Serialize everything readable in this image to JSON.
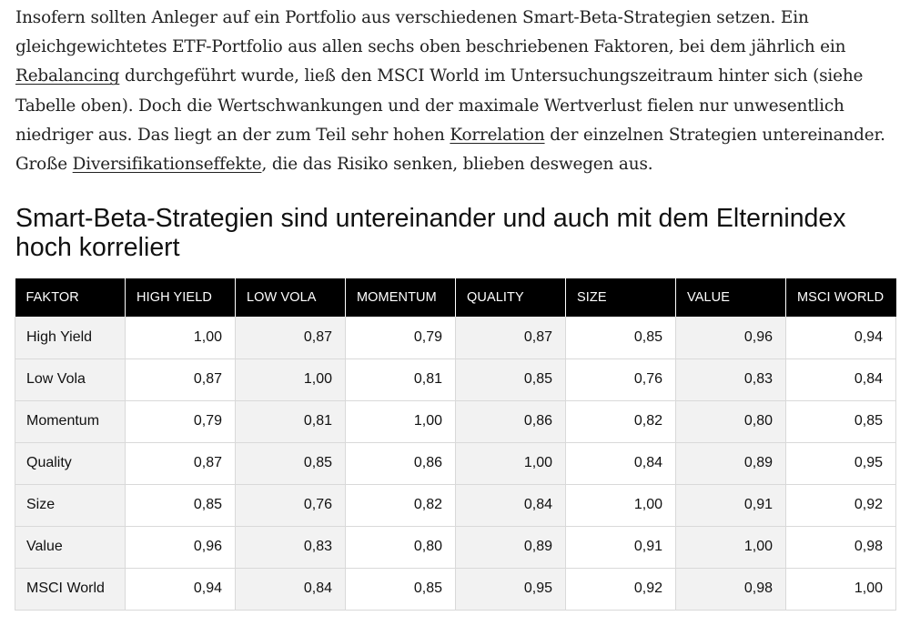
{
  "article": {
    "text_1": "Insofern sollten Anleger auf ein Portfolio aus verschiedenen Smart-Beta-Strategien setzen. Ein gleichgewichtetes ETF-Portfolio aus allen sechs oben beschriebenen Faktoren, bei dem jährlich ein ",
    "link_rebalancing": "Rebalancing",
    "text_2": " durchgeführt wurde, ließ den MSCI World im Untersuchungszeitraum hinter sich (siehe Tabelle oben). Doch die Wertschwankungen und der maximale Wertverlust fielen nur unwesentlich niedriger aus. Das liegt an der zum Teil sehr hohen ",
    "link_korrelation": "Korrelation",
    "text_3": " der einzelnen Strategien untereinander. Große ",
    "link_diversifikation": "Diversifikationseffekte",
    "text_4": ", die das Risiko senken, blieben deswegen aus."
  },
  "table": {
    "title": "Smart-Beta-Strategien sind untereinander und auch mit dem Elternindex hoch korreliert",
    "headers": [
      "FAKTOR",
      "HIGH YIELD",
      "LOW VOLA",
      "MOMENTUM",
      "QUALITY",
      "SIZE",
      "VALUE",
      "MSCI WORLD"
    ],
    "rows": [
      [
        "High Yield",
        "1,00",
        "0,87",
        "0,79",
        "0,87",
        "0,85",
        "0,96",
        "0,94"
      ],
      [
        "Low Vola",
        "0,87",
        "1,00",
        "0,81",
        "0,85",
        "0,76",
        "0,83",
        "0,84"
      ],
      [
        "Momentum",
        "0,79",
        "0,81",
        "1,00",
        "0,86",
        "0,82",
        "0,80",
        "0,85"
      ],
      [
        "Quality",
        "0,87",
        "0,85",
        "0,86",
        "1,00",
        "0,84",
        "0,89",
        "0,95"
      ],
      [
        "Size",
        "0,85",
        "0,76",
        "0,82",
        "0,84",
        "1,00",
        "0,91",
        "0,92"
      ],
      [
        "Value",
        "0,96",
        "0,83",
        "0,80",
        "0,89",
        "0,91",
        "1,00",
        "0,98"
      ],
      [
        "MSCI World",
        "0,94",
        "0,84",
        "0,85",
        "0,95",
        "0,92",
        "0,98",
        "1,00"
      ]
    ]
  }
}
